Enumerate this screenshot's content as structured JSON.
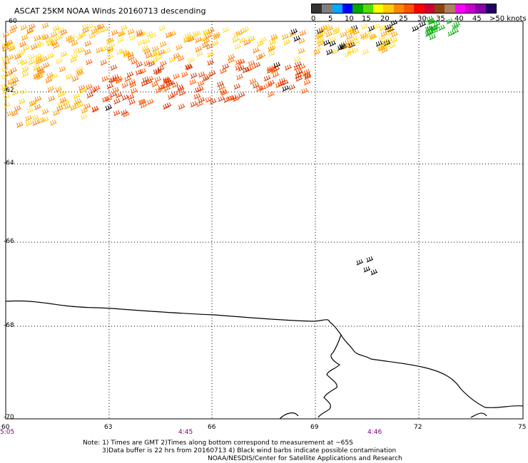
{
  "title": "ASCAT 25KM NOAA Winds 20160713 descending",
  "color_scale": {
    "colors": [
      "#333333",
      "#7f7f7f",
      "#00aaff",
      "#0000ff",
      "#00aa00",
      "#55dd00",
      "#ffff00",
      "#ffcc00",
      "#ff8800",
      "#ff5500",
      "#ff0000",
      "#cc0033",
      "#8b4513",
      "#b08060",
      "#ff00ff",
      "#cc00cc",
      "#8800aa",
      "#220066"
    ],
    "labels": [
      "0",
      "5",
      "10",
      "15",
      "20",
      "25",
      "30",
      "35",
      "40",
      "45",
      ">50 knots"
    ]
  },
  "lat_labels": [
    "-60",
    "-62",
    "-64",
    "-66",
    "-68",
    "-70"
  ],
  "lon_labels": [
    "60",
    "63",
    "66",
    "69",
    "72",
    "75"
  ],
  "time_labels": [
    "5:05",
    "4:45",
    "4:46"
  ],
  "notes": {
    "line1": "Note: 1) Times are GMT 2)Times along bottom correspond to measurement at ~65S",
    "line2": "3)Data buffer is 22 hrs from 20160713 4) Black wind barbs indicate possible contamination",
    "line3": "NOAA/NESDIS/Center for Satellite Applications and Research"
  }
}
